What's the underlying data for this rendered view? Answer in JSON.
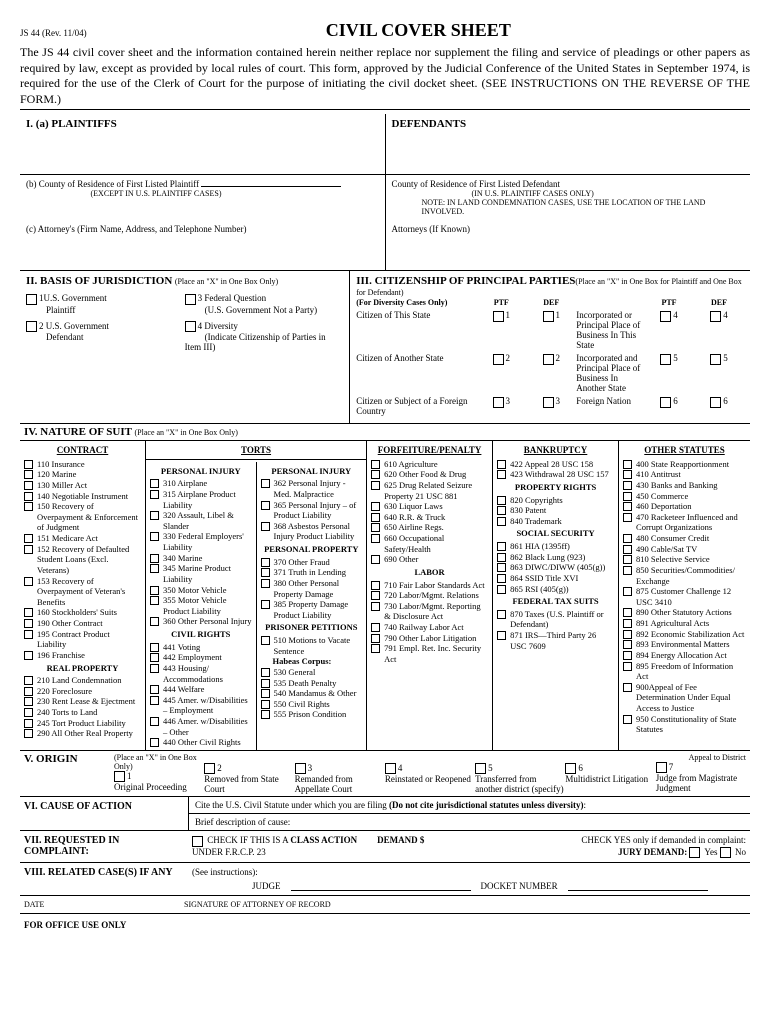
{
  "formId": "JS 44 (Rev. 11/04)",
  "title": "CIVIL COVER SHEET",
  "intro": "The JS 44 civil cover sheet and the information contained herein neither replace nor supplement the filing and service of pleadings or other papers as required by law, except as provided by local rules of court. This form, approved by the Judicial Conference of the United States in September 1974, is required for the use of the Clerk of Court for the purpose of initiating the civil docket sheet. (SEE INSTRUCTIONS ON THE REVERSE OF THE FORM.)",
  "s1": {
    "plaintiffs": "I.   (a)   PLAINTIFFS",
    "defendants": "DEFENDANTS",
    "b": "(b)   County of Residence of First Listed Plaintiff",
    "bNote": "(EXCEPT IN U.S. PLAINTIFF CASES)",
    "defCounty": "County of Residence of First Listed Defendant",
    "defNote1": "(IN U.S. PLAINTIFF CASES ONLY)",
    "defNote2": "NOTE:   IN LAND CONDEMNATION CASES, USE THE LOCATION OF THE LAND INVOLVED.",
    "c": "(c)   Attorney's (Firm Name, Address, and Telephone Number)",
    "defAtty": "Attorneys (If Known)"
  },
  "s2": {
    "title": "II. BASIS OF JURISDICTION",
    "hint": "(Place an \"X\" in One Box Only)",
    "opts": [
      {
        "n": "1",
        "l": "U.S. Government",
        "s": "Plaintiff"
      },
      {
        "n": "3",
        "l": "Federal Question",
        "s": "(U.S. Government Not a Party)"
      },
      {
        "n": "2",
        "l": "U.S. Government",
        "s": "Defendant"
      },
      {
        "n": "4",
        "l": "Diversity",
        "s": "(Indicate Citizenship of Parties in Item III)"
      }
    ]
  },
  "s3": {
    "title": "III. CITIZENSHIP OF PRINCIPAL PARTIES",
    "hint": "(Place an \"X\" in One Box for Plaintiff and One Box for Defendant)",
    "sub": "(For Diversity Cases Only)",
    "ptf": "PTF",
    "def": "DEF",
    "rows": [
      {
        "l": "Citizen of This State",
        "n": "1",
        "r": "Incorporated or Principal Place of Business In This State",
        "rn": "4"
      },
      {
        "l": "Citizen of Another State",
        "n": "2",
        "r": "Incorporated and Principal Place of Business In Another State",
        "rn": "5"
      },
      {
        "l": "Citizen or Subject of a Foreign Country",
        "n": "3",
        "r": "Foreign Nation",
        "rn": "6"
      }
    ]
  },
  "s4": {
    "title": "IV. NATURE OF SUIT",
    "hint": "(Place an \"X\" in One Box Only)",
    "contract": {
      "h": "CONTRACT",
      "items": [
        "110 Insurance",
        "120 Marine",
        "130 Miller Act",
        "140 Negotiable Instrument",
        "150 Recovery of Overpayment & Enforcement of Judgment",
        "151 Medicare Act",
        "152 Recovery of Defaulted Student Loans (Excl. Veterans)",
        "153 Recovery of Overpayment of Veteran's Benefits",
        "160 Stockholders' Suits",
        "190 Other Contract",
        "195 Contract Product Liability",
        "196 Franchise"
      ]
    },
    "realprop": {
      "h": "REAL PROPERTY",
      "items": [
        "210 Land Condemnation",
        "220 Foreclosure",
        "230 Rent Lease & Ejectment",
        "240 Torts to Land",
        "245 Tort Product Liability",
        "290 All Other Real Property"
      ]
    },
    "torts": {
      "h": "TORTS"
    },
    "pi1": {
      "h": "PERSONAL INJURY",
      "items": [
        "310 Airplane",
        "315 Airplane Product Liability",
        "320 Assault, Libel & Slander",
        "330 Federal Employers' Liability",
        "340 Marine",
        "345 Marine Product Liability",
        "350 Motor Vehicle",
        "355 Motor Vehicle Product Liability",
        "360 Other Personal Injury"
      ]
    },
    "civil": {
      "h": "CIVIL RIGHTS",
      "items": [
        "441 Voting",
        "442 Employment",
        "443 Housing/ Accommodations",
        "444 Welfare",
        "445 Amer. w/Disabilities – Employment",
        "446 Amer. w/Disabilities – Other",
        "440 Other Civil Rights"
      ]
    },
    "pi2": {
      "h": "PERSONAL INJURY",
      "items": [
        "362 Personal Injury - Med. Malpractice",
        "365 Personal Injury – of Product Liability",
        "368 Asbestos Personal Injury Product Liability"
      ]
    },
    "pp": {
      "h": "PERSONAL PROPERTY",
      "items": [
        "370 Other Fraud",
        "371 Truth in Lending",
        "380 Other Personal Property Damage",
        "385 Property Damage Product Liability"
      ]
    },
    "prisoner": {
      "h": "PRISONER PETITIONS",
      "items": [
        "510 Motions to Vacate Sentence"
      ],
      "hc": "Habeas Corpus:",
      "hcitems": [
        "530 General",
        "535 Death Penalty",
        "540 Mandamus & Other",
        "550 Civil Rights",
        "555 Prison Condition"
      ]
    },
    "forfeit": {
      "h": "FORFEITURE/PENALTY",
      "items": [
        "610 Agriculture",
        "620 Other Food & Drug",
        "625 Drug Related Seizure Property 21 USC 881",
        "630 Liquor Laws",
        "640 R.R. & Truck",
        "650 Airline Regs.",
        "660 Occupational Safety/Health",
        "690 Other"
      ]
    },
    "labor": {
      "h": "LABOR",
      "items": [
        "710 Fair Labor Standards Act",
        "720 Labor/Mgmt. Relations",
        "730 Labor/Mgmt. Reporting & Disclosure Act",
        "740 Railway Labor Act",
        "790 Other Labor Litigation",
        "791 Empl. Ret. Inc. Security Act"
      ]
    },
    "bankruptcy": {
      "h": "BANKRUPTCY",
      "items": [
        "422 Appeal 28 USC 158",
        "423 Withdrawal 28 USC 157"
      ]
    },
    "property": {
      "h": "PROPERTY RIGHTS",
      "items": [
        "820 Copyrights",
        "830 Patent",
        "840 Trademark"
      ]
    },
    "ss": {
      "h": "SOCIAL SECURITY",
      "items": [
        "861 HIA (1395ff)",
        "862 Black Lung (923)",
        "863 DIWC/DIWW (405(g))",
        "864 SSID Title XVI",
        "865 RSI (405(g))"
      ]
    },
    "tax": {
      "h": "FEDERAL TAX SUITS",
      "items": [
        "870 Taxes (U.S. Plaintiff or Defendant)",
        "871 IRS—Third Party 26 USC 7609"
      ]
    },
    "other": {
      "h": "OTHER STATUTES",
      "items": [
        "400 State Reapportionment",
        "410 Antitrust",
        "430 Banks and Banking",
        "450 Commerce",
        "460 Deportation",
        "470 Racketeer Influenced and Corrupt Organizations",
        "480 Consumer Credit",
        "490 Cable/Sat TV",
        "810 Selective Service",
        "850 Securities/Commodities/ Exchange",
        "875 Customer Challenge 12 USC 3410",
        "890 Other Statutory Actions",
        "891 Agricultural Acts",
        "892 Economic Stabilization Act",
        "893 Environmental Matters",
        "894 Energy Allocation Act",
        "895 Freedom of Information Act",
        "900Appeal of Fee Determination Under Equal Access to Justice",
        "950 Constitutionality of State Statutes"
      ]
    }
  },
  "s5": {
    "title": "V. ORIGIN",
    "hint": "(Place an \"X\" in One Box Only)",
    "appeal": "Appeal to District",
    "items": [
      {
        "n": "1",
        "l": "Original Proceeding"
      },
      {
        "n": "2",
        "l": "Removed from State Court"
      },
      {
        "n": "3",
        "l": "Remanded from Appellate Court"
      },
      {
        "n": "4",
        "l": "Reinstated or Reopened"
      },
      {
        "n": "5",
        "l": "Transferred from another district (specify)"
      },
      {
        "n": "6",
        "l": "Multidistrict Litigation"
      },
      {
        "n": "7",
        "l": "Judge from Magistrate Judgment"
      }
    ]
  },
  "s6": {
    "title": "VI. CAUSE OF ACTION",
    "l1": "Cite the U.S. Civil Statute under which you are filing (Do not cite jurisdictional statutes unless diversity):",
    "l2": "Brief description of cause:"
  },
  "s7": {
    "title": "VII. REQUESTED IN COMPLAINT:",
    "check": "CHECK IF THIS IS A",
    "class": "CLASS ACTION",
    "under": "UNDER F.R.C.P. 23",
    "demand": "DEMAND $",
    "checkYes": "CHECK YES only if demanded in complaint:",
    "jury": "JURY DEMAND:",
    "yes": "Yes",
    "no": "No"
  },
  "s8": {
    "title": "VIII. RELATED CASE(S) IF ANY",
    "see": "(See instructions):",
    "judge": "JUDGE",
    "docket": "DOCKET NUMBER"
  },
  "date": "DATE",
  "sig": "SIGNATURE OF ATTORNEY OF RECORD",
  "office": "FOR OFFICE USE ONLY"
}
